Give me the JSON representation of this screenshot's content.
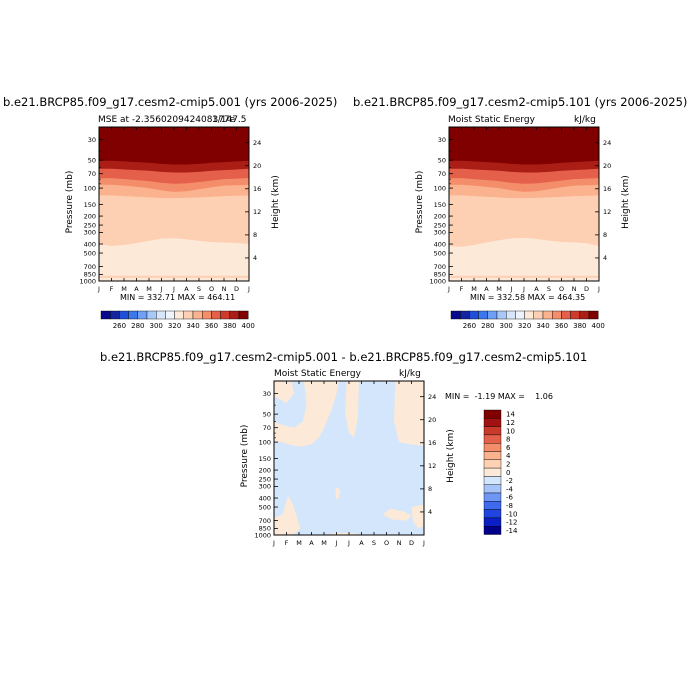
{
  "colors": {
    "level_colors": [
      "#08088c",
      "#1f4fd8",
      "#3c78ec",
      "#6fa0f6",
      "#a9c8fa",
      "#d8e6fb",
      "#fde9d7",
      "#fdd0b4",
      "#fbb28e",
      "#f48d6a",
      "#e5604a",
      "#cf3a2c",
      "#ab1e16",
      "#800000"
    ],
    "diff_colors": [
      "#00008b",
      "#0b1fc4",
      "#1f44e0",
      "#3f6af0",
      "#6f95f5",
      "#a7c4fa",
      "#d4e6fb",
      "#fde9d7",
      "#fdd2b4",
      "#fbb28e",
      "#f48d6a",
      "#e5604a",
      "#c93a2a",
      "#a31212",
      "#800000"
    ]
  },
  "panels": [
    {
      "title": "b.e21.BRCP85.f09_g17.cesm2-cmip5.001 (yrs 2006-2025)",
      "left_label": "MSE at -2.356020942408377e",
      "right_label": "kJ/kg",
      "overlap_label": "1/147.5",
      "stats": "MIN = 332.71 MAX = 464.11"
    },
    {
      "title": "b.e21.BRCP85.f09_g17.cesm2-cmip5.101 (yrs 2006-2025)",
      "left_label": "Moist Static Energy",
      "right_label": "kJ/kg",
      "stats": "MIN = 332.58 MAX = 464.35"
    },
    {
      "title": "b.e21.BRCP85.f09_g17.cesm2-cmip5.001 - b.e21.BRCP85.f09_g17.cesm2-cmip5.101",
      "left_label": "Moist Static Energy",
      "right_label": "kJ/kg",
      "stats": "MIN =  -1.19 MAX =    1.06"
    }
  ],
  "chart_data": [
    {
      "type": "heatmap",
      "title": "b.e21.BRCP85.f09_g17.cesm2-cmip5.001 (yrs 2006-2025)",
      "xlabel": "",
      "ylabel": "Pressure (mb)",
      "y2label": "Height (km)",
      "x_ticks": [
        "J",
        "F",
        "M",
        "A",
        "M",
        "J",
        "J",
        "A",
        "S",
        "O",
        "N",
        "D",
        "J"
      ],
      "y_ticks": [
        30,
        50,
        70,
        100,
        150,
        200,
        250,
        300,
        400,
        500,
        700,
        850,
        1000
      ],
      "y_scale": "log",
      "ylim": [
        1000,
        22
      ],
      "y2_ticks": [
        4,
        8,
        12,
        16,
        20,
        24
      ],
      "color_levels": [
        260,
        280,
        300,
        320,
        340,
        360,
        380,
        400
      ],
      "contour_boundaries_mb": {
        "month": [
          0,
          1,
          2,
          3,
          4,
          5,
          6,
          7,
          8,
          9,
          10,
          11,
          12
        ],
        "upper_dark": [
          62,
          62,
          63,
          64,
          65,
          67,
          68,
          68,
          67,
          65,
          64,
          63,
          62
        ],
        "b360": [
          78,
          78,
          80,
          82,
          84,
          88,
          90,
          89,
          86,
          83,
          80,
          79,
          78
        ],
        "b350": [
          92,
          92,
          94,
          97,
          100,
          106,
          110,
          108,
          103,
          98,
          94,
          93,
          92
        ],
        "b340": [
          120,
          120,
          122,
          124,
          126,
          128,
          128,
          127,
          126,
          124,
          122,
          121,
          120
        ],
        "b335": [
          400,
          420,
          410,
          390,
          370,
          350,
          345,
          355,
          370,
          380,
          385,
          390,
          400
        ],
        "b330": [
          900,
          900,
          900,
          900,
          900,
          905,
          905,
          905,
          905,
          900,
          900,
          900,
          900
        ]
      },
      "stats": "MIN = 332.71 MAX = 464.11"
    },
    {
      "type": "heatmap",
      "title": "b.e21.BRCP85.f09_g17.cesm2-cmip5.101 (yrs 2006-2025)",
      "ylabel": "Pressure (mb)",
      "y2label": "Height (km)",
      "x_ticks": [
        "J",
        "F",
        "M",
        "A",
        "M",
        "J",
        "J",
        "A",
        "S",
        "O",
        "N",
        "D",
        "J"
      ],
      "y_ticks": [
        30,
        50,
        70,
        100,
        150,
        200,
        250,
        300,
        400,
        500,
        700,
        850,
        1000
      ],
      "y2_ticks": [
        4,
        8,
        12,
        16,
        20,
        24
      ],
      "color_levels": [
        260,
        280,
        300,
        320,
        340,
        360,
        380,
        400
      ],
      "contour_boundaries_mb": {
        "month": [
          0,
          1,
          2,
          3,
          4,
          5,
          6,
          7,
          8,
          9,
          10,
          11,
          12
        ],
        "upper_dark": [
          62,
          62,
          63,
          64,
          65,
          67,
          68,
          68,
          67,
          65,
          64,
          63,
          62
        ],
        "b360": [
          78,
          78,
          80,
          82,
          84,
          88,
          90,
          89,
          86,
          83,
          80,
          79,
          78
        ],
        "b350": [
          92,
          92,
          94,
          97,
          100,
          106,
          110,
          108,
          103,
          98,
          94,
          93,
          92
        ],
        "b340": [
          120,
          120,
          122,
          124,
          126,
          128,
          128,
          127,
          126,
          124,
          122,
          121,
          120
        ],
        "b335": [
          420,
          430,
          410,
          385,
          365,
          348,
          342,
          352,
          368,
          378,
          384,
          392,
          420
        ],
        "b330": [
          900,
          900,
          900,
          900,
          900,
          905,
          905,
          905,
          905,
          900,
          900,
          900,
          900
        ]
      },
      "stats": "MIN = 332.58 MAX = 464.35"
    },
    {
      "type": "heatmap",
      "title": "b.e21.BRCP85.f09_g17.cesm2-cmip5.001 - b.e21.BRCP85.f09_g17.cesm2-cmip5.101",
      "ylabel": "Pressure (mb)",
      "y2label": "Height (km)",
      "x_ticks": [
        "J",
        "F",
        "M",
        "A",
        "M",
        "J",
        "J",
        "A",
        "S",
        "O",
        "N",
        "D",
        "J"
      ],
      "y_ticks": [
        30,
        50,
        70,
        100,
        150,
        200,
        250,
        300,
        400,
        500,
        700,
        850,
        1000
      ],
      "y2_ticks": [
        4,
        8,
        12,
        16,
        20,
        24
      ],
      "color_levels": [
        -14,
        -12,
        -10,
        -8,
        -6,
        -4,
        -2,
        0,
        2,
        4,
        6,
        8,
        10,
        12,
        14
      ],
      "stats": "MIN =  -1.19 MAX =    1.06"
    }
  ]
}
